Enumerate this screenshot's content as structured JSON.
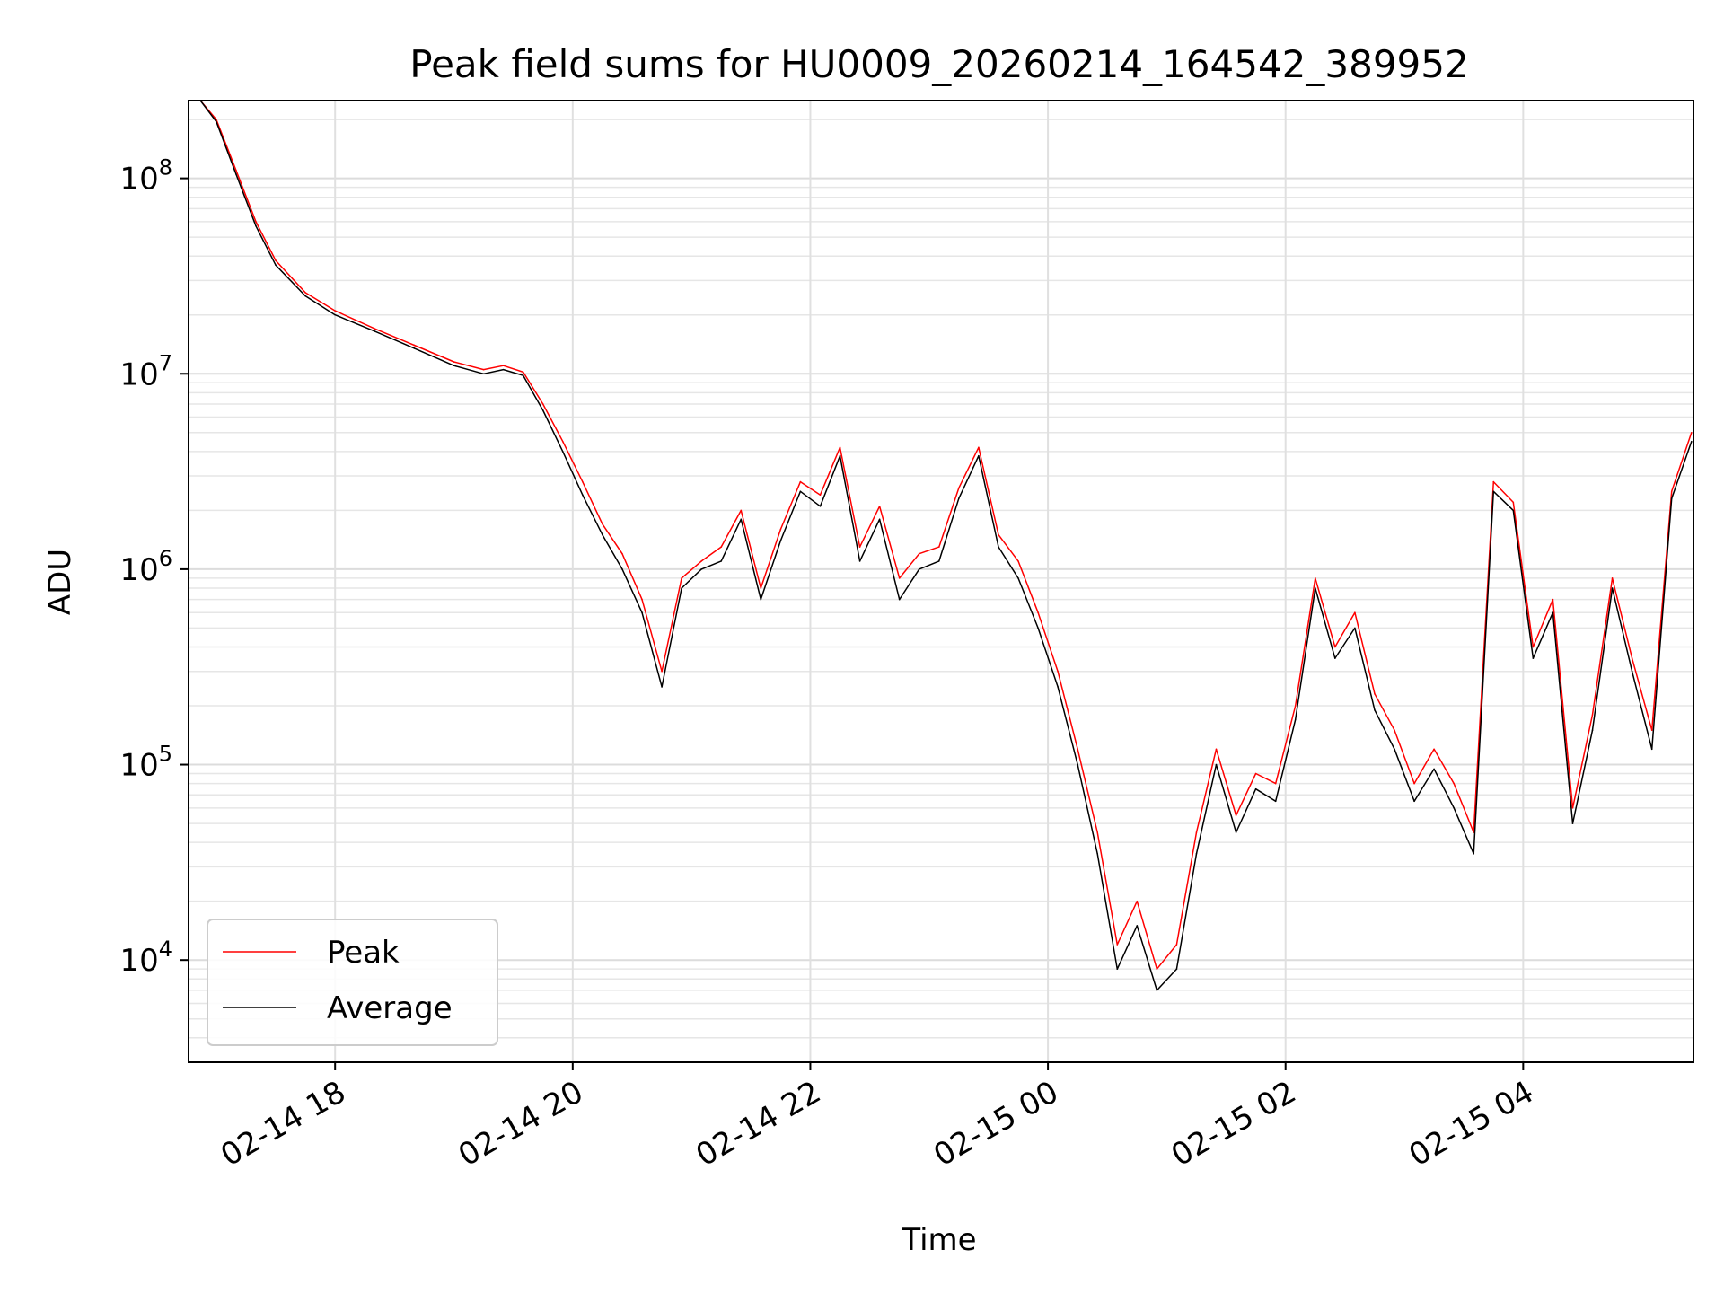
{
  "chart_data": {
    "type": "line",
    "title": "Peak field sums for HU0009_20260214_164542_389952",
    "xlabel": "Time",
    "ylabel": "ADU",
    "yscale": "log",
    "xlim": [
      "2026-02-14 16:46",
      "2026-02-15 05:26"
    ],
    "ylim": [
      3000,
      250000000
    ],
    "grid": true,
    "legend": "lower-left",
    "x_ticks": [
      "02-14 18",
      "02-14 20",
      "02-14 22",
      "02-15 00",
      "02-15 02",
      "02-15 04"
    ],
    "y_ticks": [
      {
        "base": "10",
        "exp": "4",
        "value": 10000
      },
      {
        "base": "10",
        "exp": "5",
        "value": 100000
      },
      {
        "base": "10",
        "exp": "6",
        "value": 1000000
      },
      {
        "base": "10",
        "exp": "7",
        "value": 10000000
      },
      {
        "base": "10",
        "exp": "8",
        "value": 100000000
      }
    ],
    "series": [
      {
        "name": "Peak",
        "color": "#ff0000",
        "x": [
          "2026-02-14 16:52",
          "2026-02-14 17:00",
          "2026-02-14 17:10",
          "2026-02-14 17:20",
          "2026-02-14 17:30",
          "2026-02-14 17:45",
          "2026-02-14 18:00",
          "2026-02-14 18:20",
          "2026-02-14 18:40",
          "2026-02-14 19:00",
          "2026-02-14 19:15",
          "2026-02-14 19:25",
          "2026-02-14 19:35",
          "2026-02-14 19:45",
          "2026-02-14 19:55",
          "2026-02-14 20:05",
          "2026-02-14 20:15",
          "2026-02-14 20:25",
          "2026-02-14 20:35",
          "2026-02-14 20:45",
          "2026-02-14 20:55",
          "2026-02-14 21:05",
          "2026-02-14 21:15",
          "2026-02-14 21:25",
          "2026-02-14 21:35",
          "2026-02-14 21:45",
          "2026-02-14 21:55",
          "2026-02-14 22:05",
          "2026-02-14 22:15",
          "2026-02-14 22:25",
          "2026-02-14 22:35",
          "2026-02-14 22:45",
          "2026-02-14 22:55",
          "2026-02-14 23:05",
          "2026-02-14 23:15",
          "2026-02-14 23:25",
          "2026-02-14 23:35",
          "2026-02-14 23:45",
          "2026-02-14 23:55",
          "2026-02-15 00:05",
          "2026-02-15 00:15",
          "2026-02-15 00:25",
          "2026-02-15 00:35",
          "2026-02-15 00:45",
          "2026-02-15 00:55",
          "2026-02-15 01:05",
          "2026-02-15 01:15",
          "2026-02-15 01:25",
          "2026-02-15 01:35",
          "2026-02-15 01:45",
          "2026-02-15 01:55",
          "2026-02-15 02:05",
          "2026-02-15 02:15",
          "2026-02-15 02:25",
          "2026-02-15 02:35",
          "2026-02-15 02:45",
          "2026-02-15 02:55",
          "2026-02-15 03:05",
          "2026-02-15 03:15",
          "2026-02-15 03:25",
          "2026-02-15 03:35",
          "2026-02-15 03:45",
          "2026-02-15 03:55",
          "2026-02-15 04:05",
          "2026-02-15 04:15",
          "2026-02-15 04:25",
          "2026-02-15 04:35",
          "2026-02-15 04:45",
          "2026-02-15 04:55",
          "2026-02-15 05:05",
          "2026-02-15 05:15",
          "2026-02-15 05:25"
        ],
        "values": [
          250000000,
          200000000,
          110000000,
          60000000,
          38000000,
          26000000,
          21000000,
          17000000,
          14000000,
          11500000,
          10500000,
          11000000,
          10200000,
          7000000,
          4500000,
          2800000,
          1700000,
          1200000,
          700000,
          300000,
          900000,
          1100000,
          1300000,
          2000000,
          800000,
          1600000,
          2800000,
          2400000,
          4200000,
          1300000,
          2100000,
          900000,
          1200000,
          1300000,
          2600000,
          4200000,
          1500000,
          1100000,
          600000,
          300000,
          120000,
          45000,
          12000,
          20000,
          9000,
          12000,
          45000,
          120000,
          55000,
          90000,
          80000,
          200000,
          900000,
          400000,
          600000,
          230000,
          150000,
          80000,
          120000,
          80000,
          45000,
          2800000,
          2200000,
          400000,
          700000,
          60000,
          180000,
          900000,
          350000,
          150000,
          2500000,
          5000000
        ]
      },
      {
        "name": "Average",
        "color": "#000000",
        "x": [
          "2026-02-14 16:52",
          "2026-02-14 17:00",
          "2026-02-14 17:10",
          "2026-02-14 17:20",
          "2026-02-14 17:30",
          "2026-02-14 17:45",
          "2026-02-14 18:00",
          "2026-02-14 18:20",
          "2026-02-14 18:40",
          "2026-02-14 19:00",
          "2026-02-14 19:15",
          "2026-02-14 19:25",
          "2026-02-14 19:35",
          "2026-02-14 19:45",
          "2026-02-14 19:55",
          "2026-02-14 20:05",
          "2026-02-14 20:15",
          "2026-02-14 20:25",
          "2026-02-14 20:35",
          "2026-02-14 20:45",
          "2026-02-14 20:55",
          "2026-02-14 21:05",
          "2026-02-14 21:15",
          "2026-02-14 21:25",
          "2026-02-14 21:35",
          "2026-02-14 21:45",
          "2026-02-14 21:55",
          "2026-02-14 22:05",
          "2026-02-14 22:15",
          "2026-02-14 22:25",
          "2026-02-14 22:35",
          "2026-02-14 22:45",
          "2026-02-14 22:55",
          "2026-02-14 23:05",
          "2026-02-14 23:15",
          "2026-02-14 23:25",
          "2026-02-14 23:35",
          "2026-02-14 23:45",
          "2026-02-14 23:55",
          "2026-02-15 00:05",
          "2026-02-15 00:15",
          "2026-02-15 00:25",
          "2026-02-15 00:35",
          "2026-02-15 00:45",
          "2026-02-15 00:55",
          "2026-02-15 01:05",
          "2026-02-15 01:15",
          "2026-02-15 01:25",
          "2026-02-15 01:35",
          "2026-02-15 01:45",
          "2026-02-15 01:55",
          "2026-02-15 02:05",
          "2026-02-15 02:15",
          "2026-02-15 02:25",
          "2026-02-15 02:35",
          "2026-02-15 02:45",
          "2026-02-15 02:55",
          "2026-02-15 03:05",
          "2026-02-15 03:15",
          "2026-02-15 03:25",
          "2026-02-15 03:35",
          "2026-02-15 03:45",
          "2026-02-15 03:55",
          "2026-02-15 04:05",
          "2026-02-15 04:15",
          "2026-02-15 04:25",
          "2026-02-15 04:35",
          "2026-02-15 04:45",
          "2026-02-15 04:55",
          "2026-02-15 05:05",
          "2026-02-15 05:15",
          "2026-02-15 05:25"
        ],
        "values": [
          250000000,
          195000000,
          105000000,
          57000000,
          36000000,
          25000000,
          20000000,
          16500000,
          13500000,
          11000000,
          10000000,
          10500000,
          9800000,
          6500000,
          4000000,
          2400000,
          1500000,
          1000000,
          600000,
          250000,
          800000,
          1000000,
          1100000,
          1800000,
          700000,
          1400000,
          2500000,
          2100000,
          3800000,
          1100000,
          1800000,
          700000,
          1000000,
          1100000,
          2300000,
          3800000,
          1300000,
          900000,
          500000,
          250000,
          100000,
          35000,
          9000,
          15000,
          7000,
          9000,
          35000,
          100000,
          45000,
          75000,
          65000,
          170000,
          800000,
          350000,
          500000,
          190000,
          120000,
          65000,
          95000,
          60000,
          35000,
          2500000,
          2000000,
          350000,
          600000,
          50000,
          150000,
          800000,
          300000,
          120000,
          2300000,
          4500000
        ]
      }
    ]
  }
}
